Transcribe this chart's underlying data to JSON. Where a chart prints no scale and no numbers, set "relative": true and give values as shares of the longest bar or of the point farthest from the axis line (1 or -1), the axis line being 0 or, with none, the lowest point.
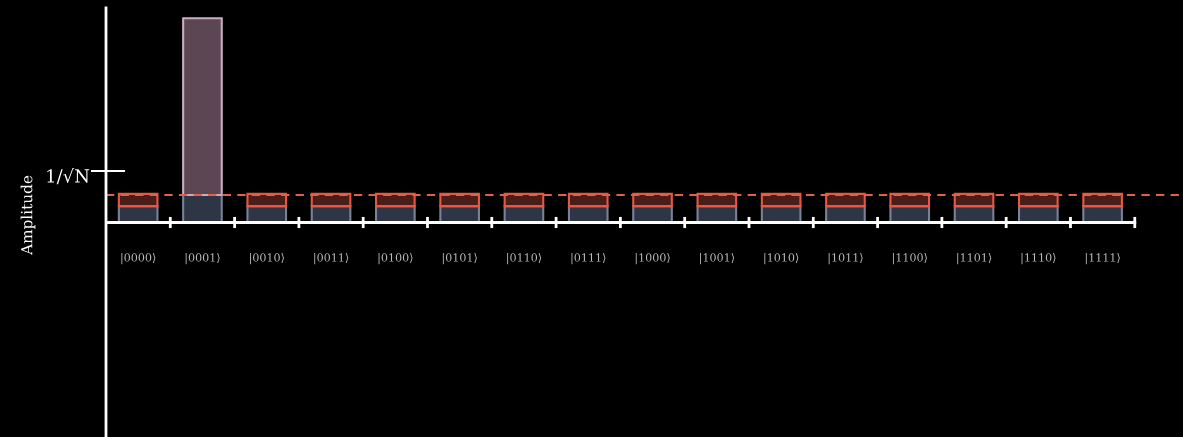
{
  "chart_data": {
    "type": "bar",
    "relative": true,
    "stacked": true,
    "ylabel": "Amplitude",
    "categories": [
      "|0000⟩",
      "|0001⟩",
      "|0010⟩",
      "|0011⟩",
      "|0100⟩",
      "|0101⟩",
      "|0110⟩",
      "|0111⟩",
      "|1000⟩",
      "|1001⟩",
      "|1010⟩",
      "|1011⟩",
      "|1100⟩",
      "|1101⟩",
      "|1110⟩",
      "|1111⟩"
    ],
    "series": [
      {
        "color": "#2e3545",
        "values": [
          0.08,
          0.135,
          0.08,
          0.08,
          0.08,
          0.08,
          0.08,
          0.08,
          0.08,
          0.08,
          0.08,
          0.08,
          0.08,
          0.08,
          0.08,
          0.08
        ]
      },
      {
        "colors": [
          "#4a1e18",
          "#5c4654",
          "#4a1e18",
          "#4a1e18",
          "#4a1e18",
          "#4a1e18",
          "#4a1e18",
          "#4a1e18",
          "#4a1e18",
          "#4a1e18",
          "#4a1e18",
          "#4a1e18",
          "#4a1e18",
          "#4a1e18",
          "#4a1e18",
          "#4a1e18"
        ],
        "values": [
          0.06,
          0.865,
          0.06,
          0.06,
          0.06,
          0.06,
          0.06,
          0.06,
          0.06,
          0.06,
          0.06,
          0.06,
          0.06,
          0.06,
          0.06,
          0.06
        ]
      }
    ],
    "ref_lines": [
      {
        "axis": "y",
        "value": 0.135,
        "color": "#e0604a",
        "line_style": "dashed"
      }
    ],
    "annotations": [
      "1/√N"
    ],
    "grid": false,
    "legend": false
  }
}
